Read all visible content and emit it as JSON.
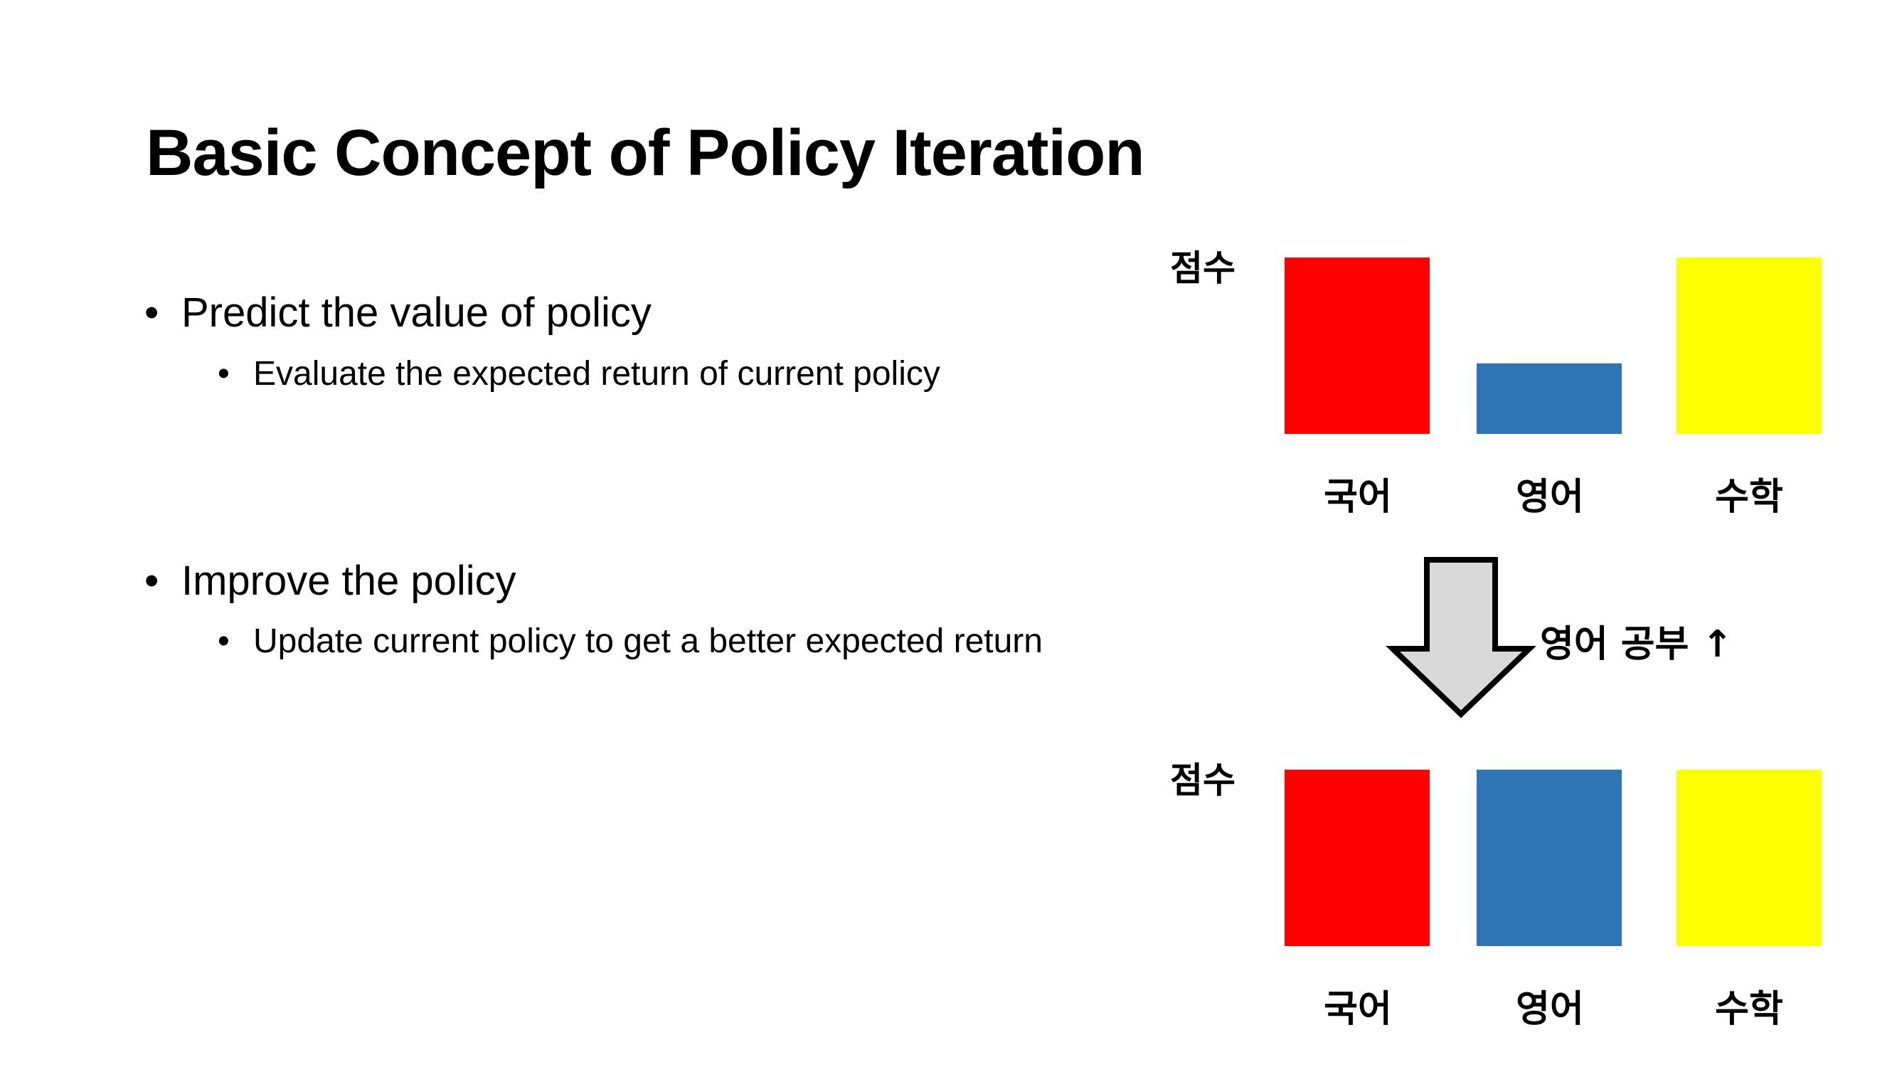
{
  "slide": {
    "title": "Basic Concept of Policy Iteration",
    "bullets": [
      {
        "text": "Predict the value of policy",
        "sub": "Evaluate the expected return of current policy"
      },
      {
        "text": "Improve the policy",
        "sub": "Update current policy to get a better expected return"
      }
    ],
    "bullet_glyph": "•"
  },
  "arrow": {
    "label": "영어 공부 ↑",
    "fill": "#d9d9d9",
    "stroke": "#000000"
  },
  "chart_data": [
    {
      "type": "bar",
      "ylabel": "점수",
      "categories": [
        "국어",
        "영어",
        "수학"
      ],
      "values": [
        1.0,
        0.4,
        1.0
      ],
      "colors": [
        "#ff0000",
        "#2e75b6",
        "#ffff00"
      ]
    },
    {
      "type": "bar",
      "ylabel": "점수",
      "categories": [
        "국어",
        "영어",
        "수학"
      ],
      "values": [
        1.0,
        1.0,
        1.0
      ],
      "colors": [
        "#ff0000",
        "#2e75b6",
        "#ffff00"
      ]
    }
  ]
}
